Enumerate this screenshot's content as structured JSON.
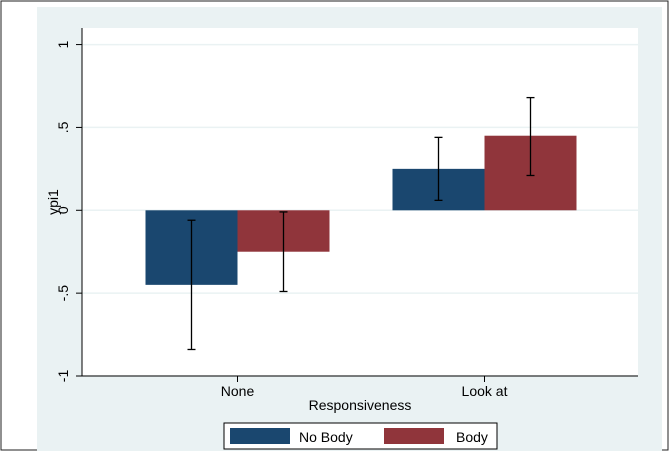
{
  "colors": {
    "outer_background": "#eaf2f3",
    "plot_background": "#ffffff",
    "gridline": "#eaf2f3",
    "axis": "#000000",
    "no_body": "#1a476f",
    "body": "#90353b",
    "error_bar": "#000000"
  },
  "chart_data": {
    "type": "bar",
    "xlabel": "Responsiveness",
    "ylabel": "ypi1",
    "categories": [
      "None",
      "Look at"
    ],
    "ylim": [
      -1,
      1.1
    ],
    "yticks": [
      1,
      0.5,
      0,
      -0.5,
      -1
    ],
    "ytick_labels": [
      "1",
      ".5",
      "0",
      "-.5",
      "-1"
    ],
    "grid": true,
    "legend_position": "bottom",
    "series": [
      {
        "name": "No Body",
        "color": "#1a476f",
        "values": [
          -0.45,
          0.25
        ],
        "error_low": [
          -0.84,
          0.06
        ],
        "error_high": [
          -0.06,
          0.44
        ]
      },
      {
        "name": "Body",
        "color": "#90353b",
        "values": [
          -0.25,
          0.45
        ],
        "error_low": [
          -0.49,
          0.21
        ],
        "error_high": [
          -0.01,
          0.68
        ]
      }
    ]
  }
}
